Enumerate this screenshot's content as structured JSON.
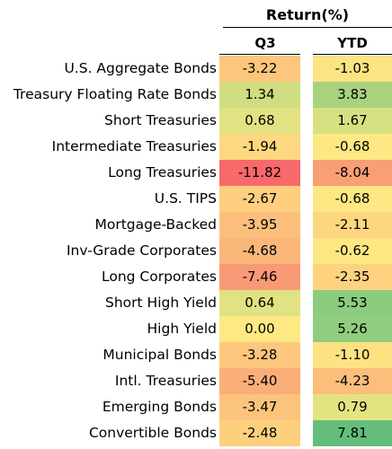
{
  "header": {
    "title": "Return(%)",
    "col_q3": "Q3",
    "col_ytd": "YTD"
  },
  "chart_data": {
    "type": "table",
    "title": "Return(%)",
    "columns": [
      "Q3",
      "YTD"
    ],
    "rows": [
      {
        "label": "U.S. Aggregate Bonds",
        "q3": "-3.22",
        "ytd": "-1.03",
        "q3_color": "#fcc77c",
        "ytd_color": "#fde482"
      },
      {
        "label": "Treasury Floating Rate Bonds",
        "q3": "1.34",
        "ytd": "3.83",
        "q3_color": "#d0dd80",
        "ytd_color": "#a9d27f"
      },
      {
        "label": "Short Treasuries",
        "q3": "0.68",
        "ytd": "1.67",
        "q3_color": "#e2e282",
        "ytd_color": "#d6e081"
      },
      {
        "label": "Intermediate Treasuries",
        "q3": "-1.94",
        "ytd": "-0.68",
        "q3_color": "#fed880",
        "ytd_color": "#fde883"
      },
      {
        "label": "Long Treasuries",
        "q3": "-11.82",
        "ytd": "-8.04",
        "q3_color": "#f8696b",
        "ytd_color": "#f99f76"
      },
      {
        "label": "U.S. TIPS",
        "q3": "-2.67",
        "ytd": "-0.68",
        "q3_color": "#fdcf7e",
        "ytd_color": "#fde883"
      },
      {
        "label": "Mortgage-Backed",
        "q3": "-3.95",
        "ytd": "-2.11",
        "q3_color": "#fcbf7b",
        "ytd_color": "#fdd680"
      },
      {
        "label": "Inv-Grade Corporates",
        "q3": "-4.68",
        "ytd": "-0.62",
        "q3_color": "#fbb77a",
        "ytd_color": "#fde883"
      },
      {
        "label": "Long Corporates",
        "q3": "-7.46",
        "ytd": "-2.35",
        "q3_color": "#f99a76",
        "ytd_color": "#fdd37f"
      },
      {
        "label": "Short High Yield",
        "q3": "0.64",
        "ytd": "5.53",
        "q3_color": "#e0e283",
        "ytd_color": "#8ccc7e"
      },
      {
        "label": "High Yield",
        "q3": "0.00",
        "ytd": "5.26",
        "q3_color": "#fee983",
        "ytd_color": "#91cd7e"
      },
      {
        "label": "Municipal Bonds",
        "q3": "-3.28",
        "ytd": "-1.10",
        "q3_color": "#fcc77c",
        "ytd_color": "#fde282"
      },
      {
        "label": "Intl. Treasuries",
        "q3": "-5.40",
        "ytd": "-4.23",
        "q3_color": "#fbaf78",
        "ytd_color": "#fbbe7b"
      },
      {
        "label": "Emerging Bonds",
        "q3": "-3.47",
        "ytd": "0.79",
        "q3_color": "#fcc37c",
        "ytd_color": "#e4e382"
      },
      {
        "label": "Convertible Bonds",
        "q3": "-2.48",
        "ytd": "7.81",
        "q3_color": "#fdd07e",
        "ytd_color": "#63be7b"
      }
    ]
  }
}
